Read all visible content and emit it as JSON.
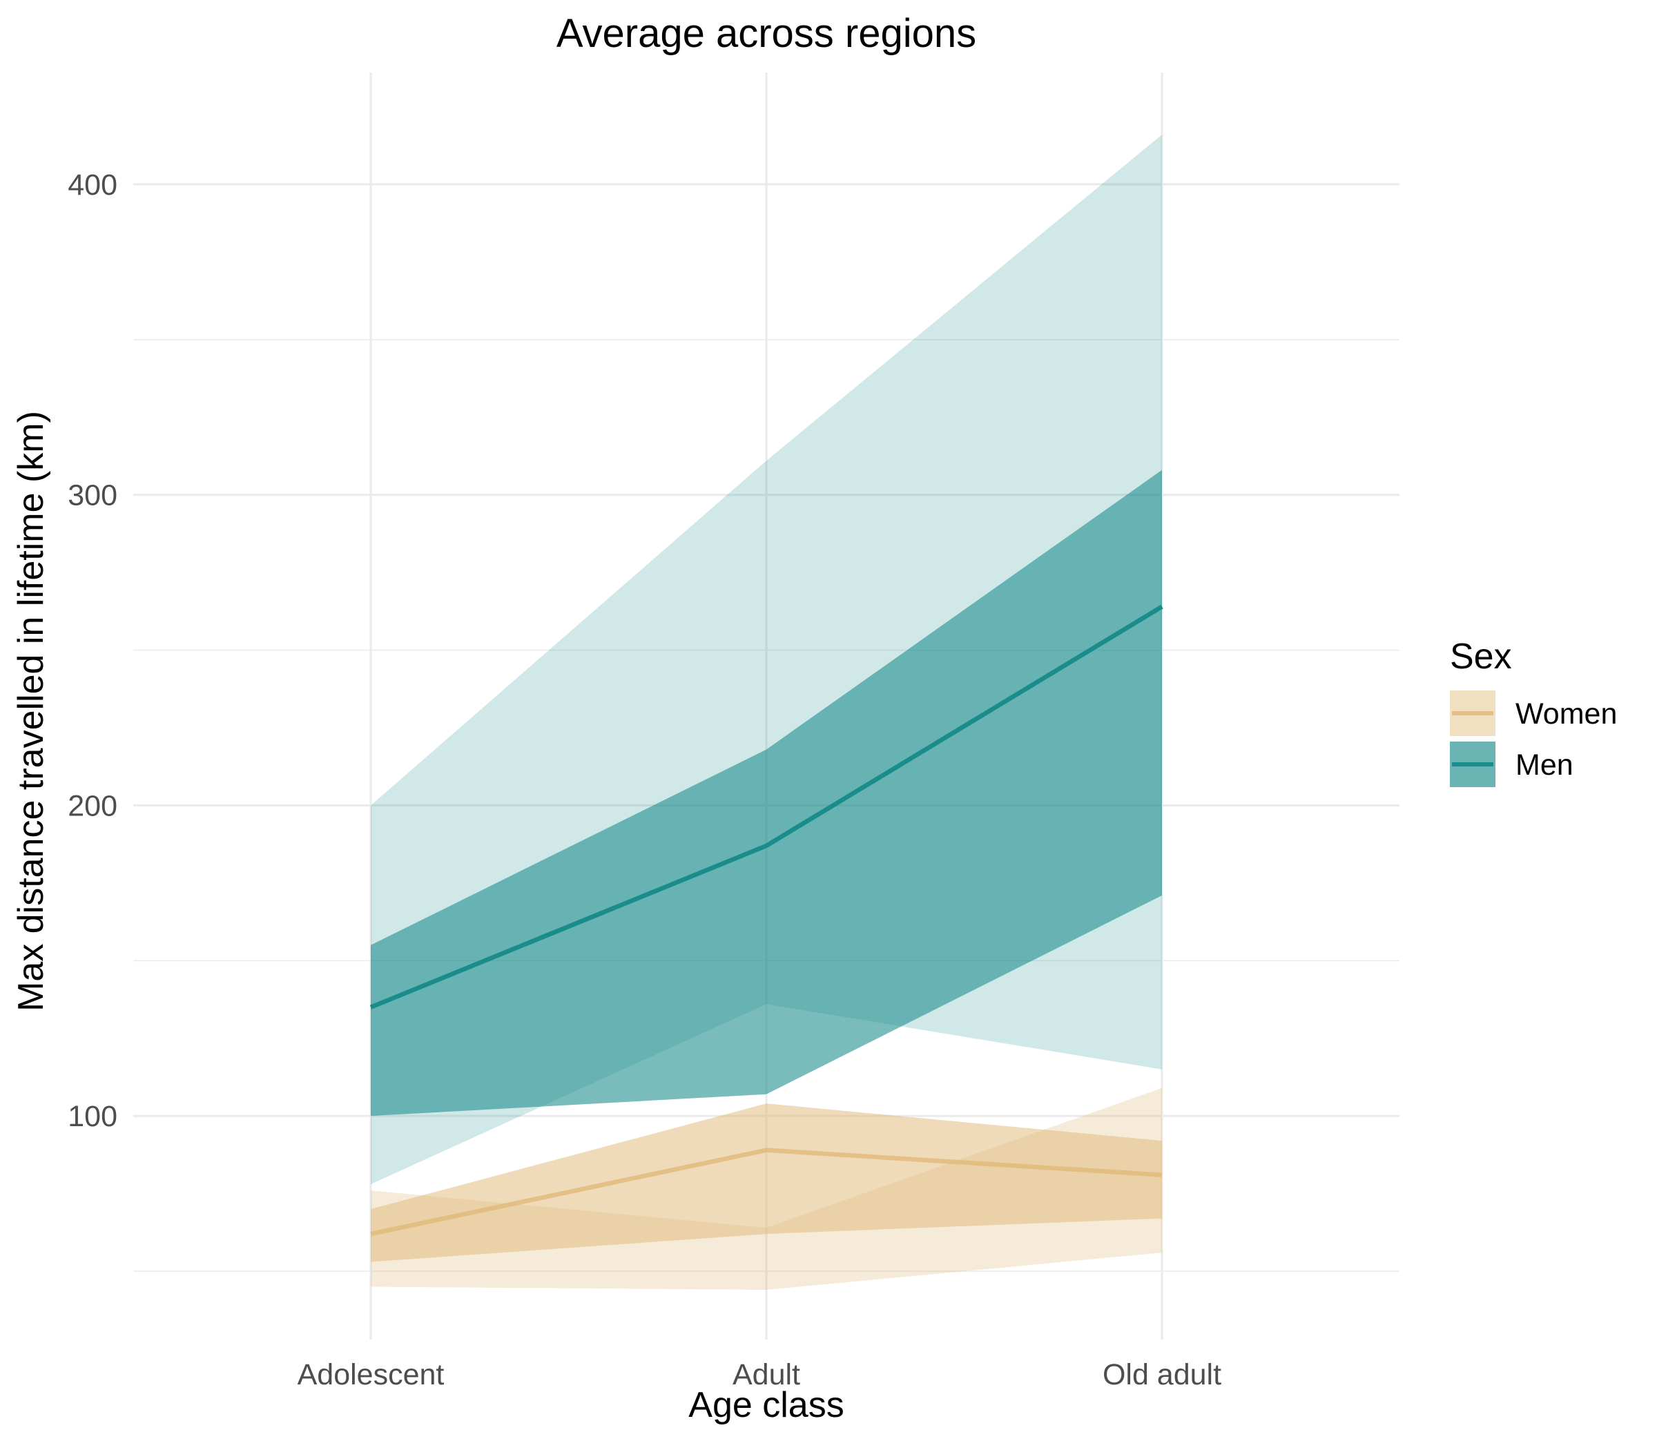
{
  "chart_data": {
    "type": "line",
    "title": "Average across regions",
    "xlabel": "Age class",
    "ylabel": "Max distance travelled in lifetime (km)",
    "categories": [
      "Adolescent",
      "Adult",
      "Old adult"
    ],
    "ylim": [
      28,
      436
    ],
    "yticks": [
      100,
      200,
      300,
      400
    ],
    "yminor": [
      50,
      150,
      250,
      350
    ],
    "grid": true,
    "legend": {
      "title": "Sex",
      "position": "right"
    },
    "series": [
      {
        "name": "Women",
        "color": "#E0B776",
        "values": [
          62,
          89,
          81
        ],
        "ribbon_inner": {
          "lower": [
            53,
            62,
            67
          ],
          "upper": [
            70,
            104,
            92
          ]
        },
        "ribbon_outer": {
          "lower": [
            45,
            44,
            56
          ],
          "upper": [
            76,
            64,
            109
          ]
        }
      },
      {
        "name": "Men",
        "color": "#1A8C8C",
        "values": [
          135,
          187,
          264
        ],
        "ribbon_inner": {
          "lower": [
            100,
            107,
            171
          ],
          "upper": [
            155,
            218,
            308
          ]
        },
        "ribbon_outer": {
          "lower": [
            78,
            136,
            115
          ],
          "upper": [
            200,
            311,
            416
          ]
        }
      }
    ]
  }
}
